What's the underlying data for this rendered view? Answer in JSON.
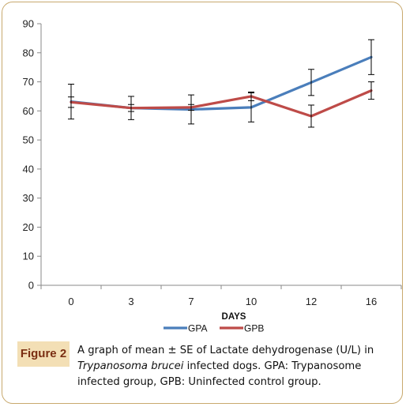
{
  "figure": {
    "label": "Figure 2",
    "caption_part1": "A graph of mean ± SE of Lactate dehydrogenase (U/L) in ",
    "caption_italic": "Trypanosoma brucei",
    "caption_part2": " infected dogs. GPA: Trypanosome infected group, GPB: Uninfected control group."
  },
  "chart_data": {
    "type": "line",
    "categories": [
      "0",
      "3",
      "7",
      "10",
      "12",
      "16"
    ],
    "xlabel": "DAYS",
    "ylabel": "",
    "title": "",
    "ylim": [
      0,
      90
    ],
    "yticks": [
      0,
      10,
      20,
      30,
      40,
      50,
      60,
      70,
      80,
      90
    ],
    "legend_position": "bottom",
    "grid": false,
    "series": [
      {
        "name": "GPA",
        "color": "#4a7ebb",
        "values": [
          63.2,
          61.0,
          60.5,
          61.2,
          69.8,
          78.5
        ],
        "error": [
          6.0,
          4.0,
          5.0,
          5.0,
          4.5,
          6.0
        ]
      },
      {
        "name": "GPB",
        "color": "#be4b48",
        "values": [
          63.0,
          61.0,
          61.2,
          65.0,
          58.2,
          67.0
        ],
        "error": [
          1.8,
          1.2,
          1.0,
          1.5,
          3.8,
          3.0
        ]
      }
    ]
  }
}
